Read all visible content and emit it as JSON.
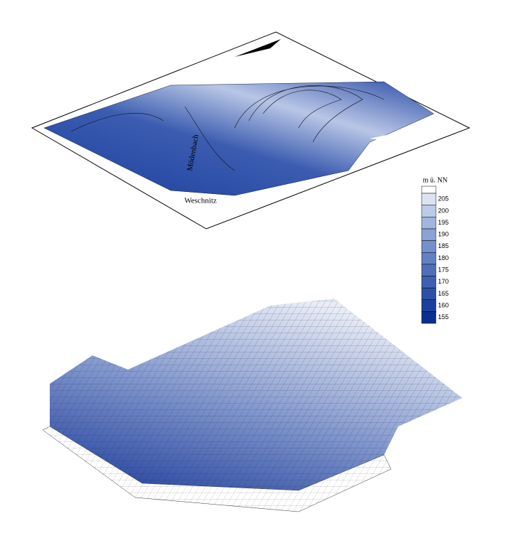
{
  "labels": {
    "river_1": "Mödenbach",
    "river_2": "Weschnitz"
  },
  "legend": {
    "title": "m ü. NN",
    "ticks": [
      155,
      160,
      165,
      170,
      175,
      180,
      185,
      190,
      195,
      200,
      205
    ],
    "colors": [
      "#0b2f8f",
      "#1c3f9c",
      "#2e4fa6",
      "#3f5fb0",
      "#506fb9",
      "#6280c2",
      "#7690cb",
      "#8ba2d4",
      "#a2b5de",
      "#bccbe8",
      "#dce4f3"
    ]
  }
}
